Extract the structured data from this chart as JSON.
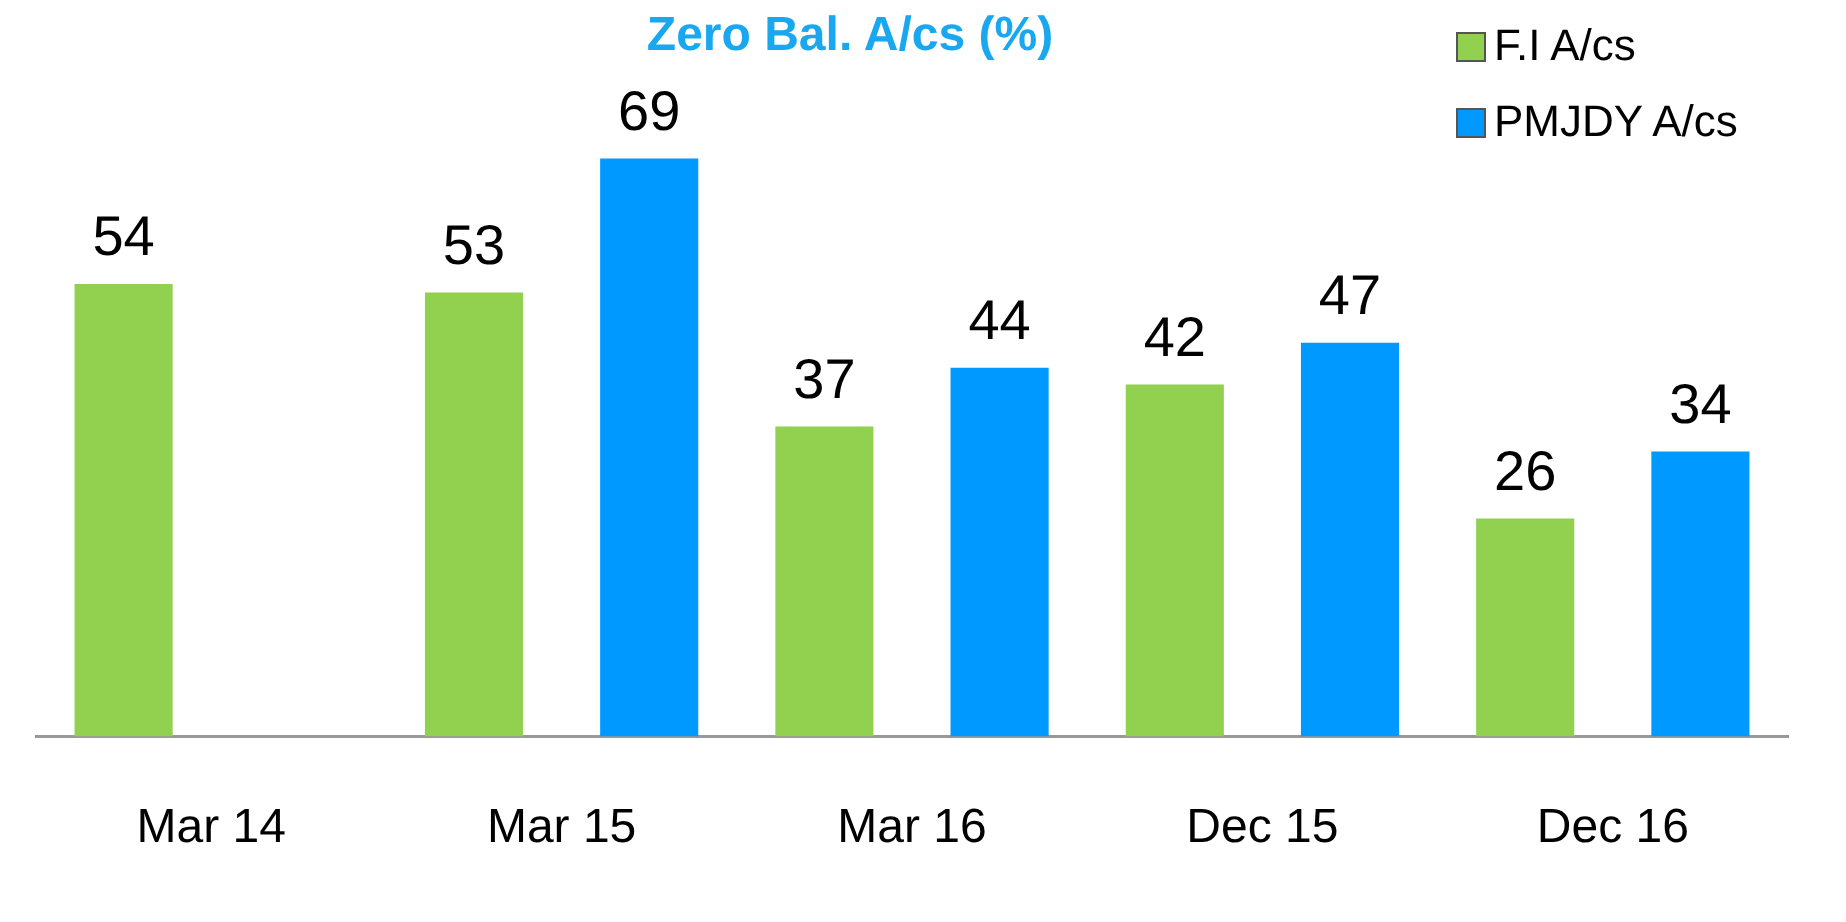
{
  "chart_data": {
    "type": "bar",
    "title": "Zero Bal. A/cs (%)",
    "categories": [
      "Mar 14",
      "Mar 15",
      "Mar 16",
      "Dec 15",
      "Dec 16"
    ],
    "series": [
      {
        "name": "F.I A/cs",
        "color": "#92d050",
        "values": [
          54,
          53,
          37,
          42,
          26
        ]
      },
      {
        "name": "PMJDY A/cs",
        "color": "#0099ff",
        "values": [
          null,
          69,
          44,
          47,
          34
        ]
      }
    ],
    "tick_labels": "x",
    "data_labels": true,
    "legend": "top right"
  }
}
